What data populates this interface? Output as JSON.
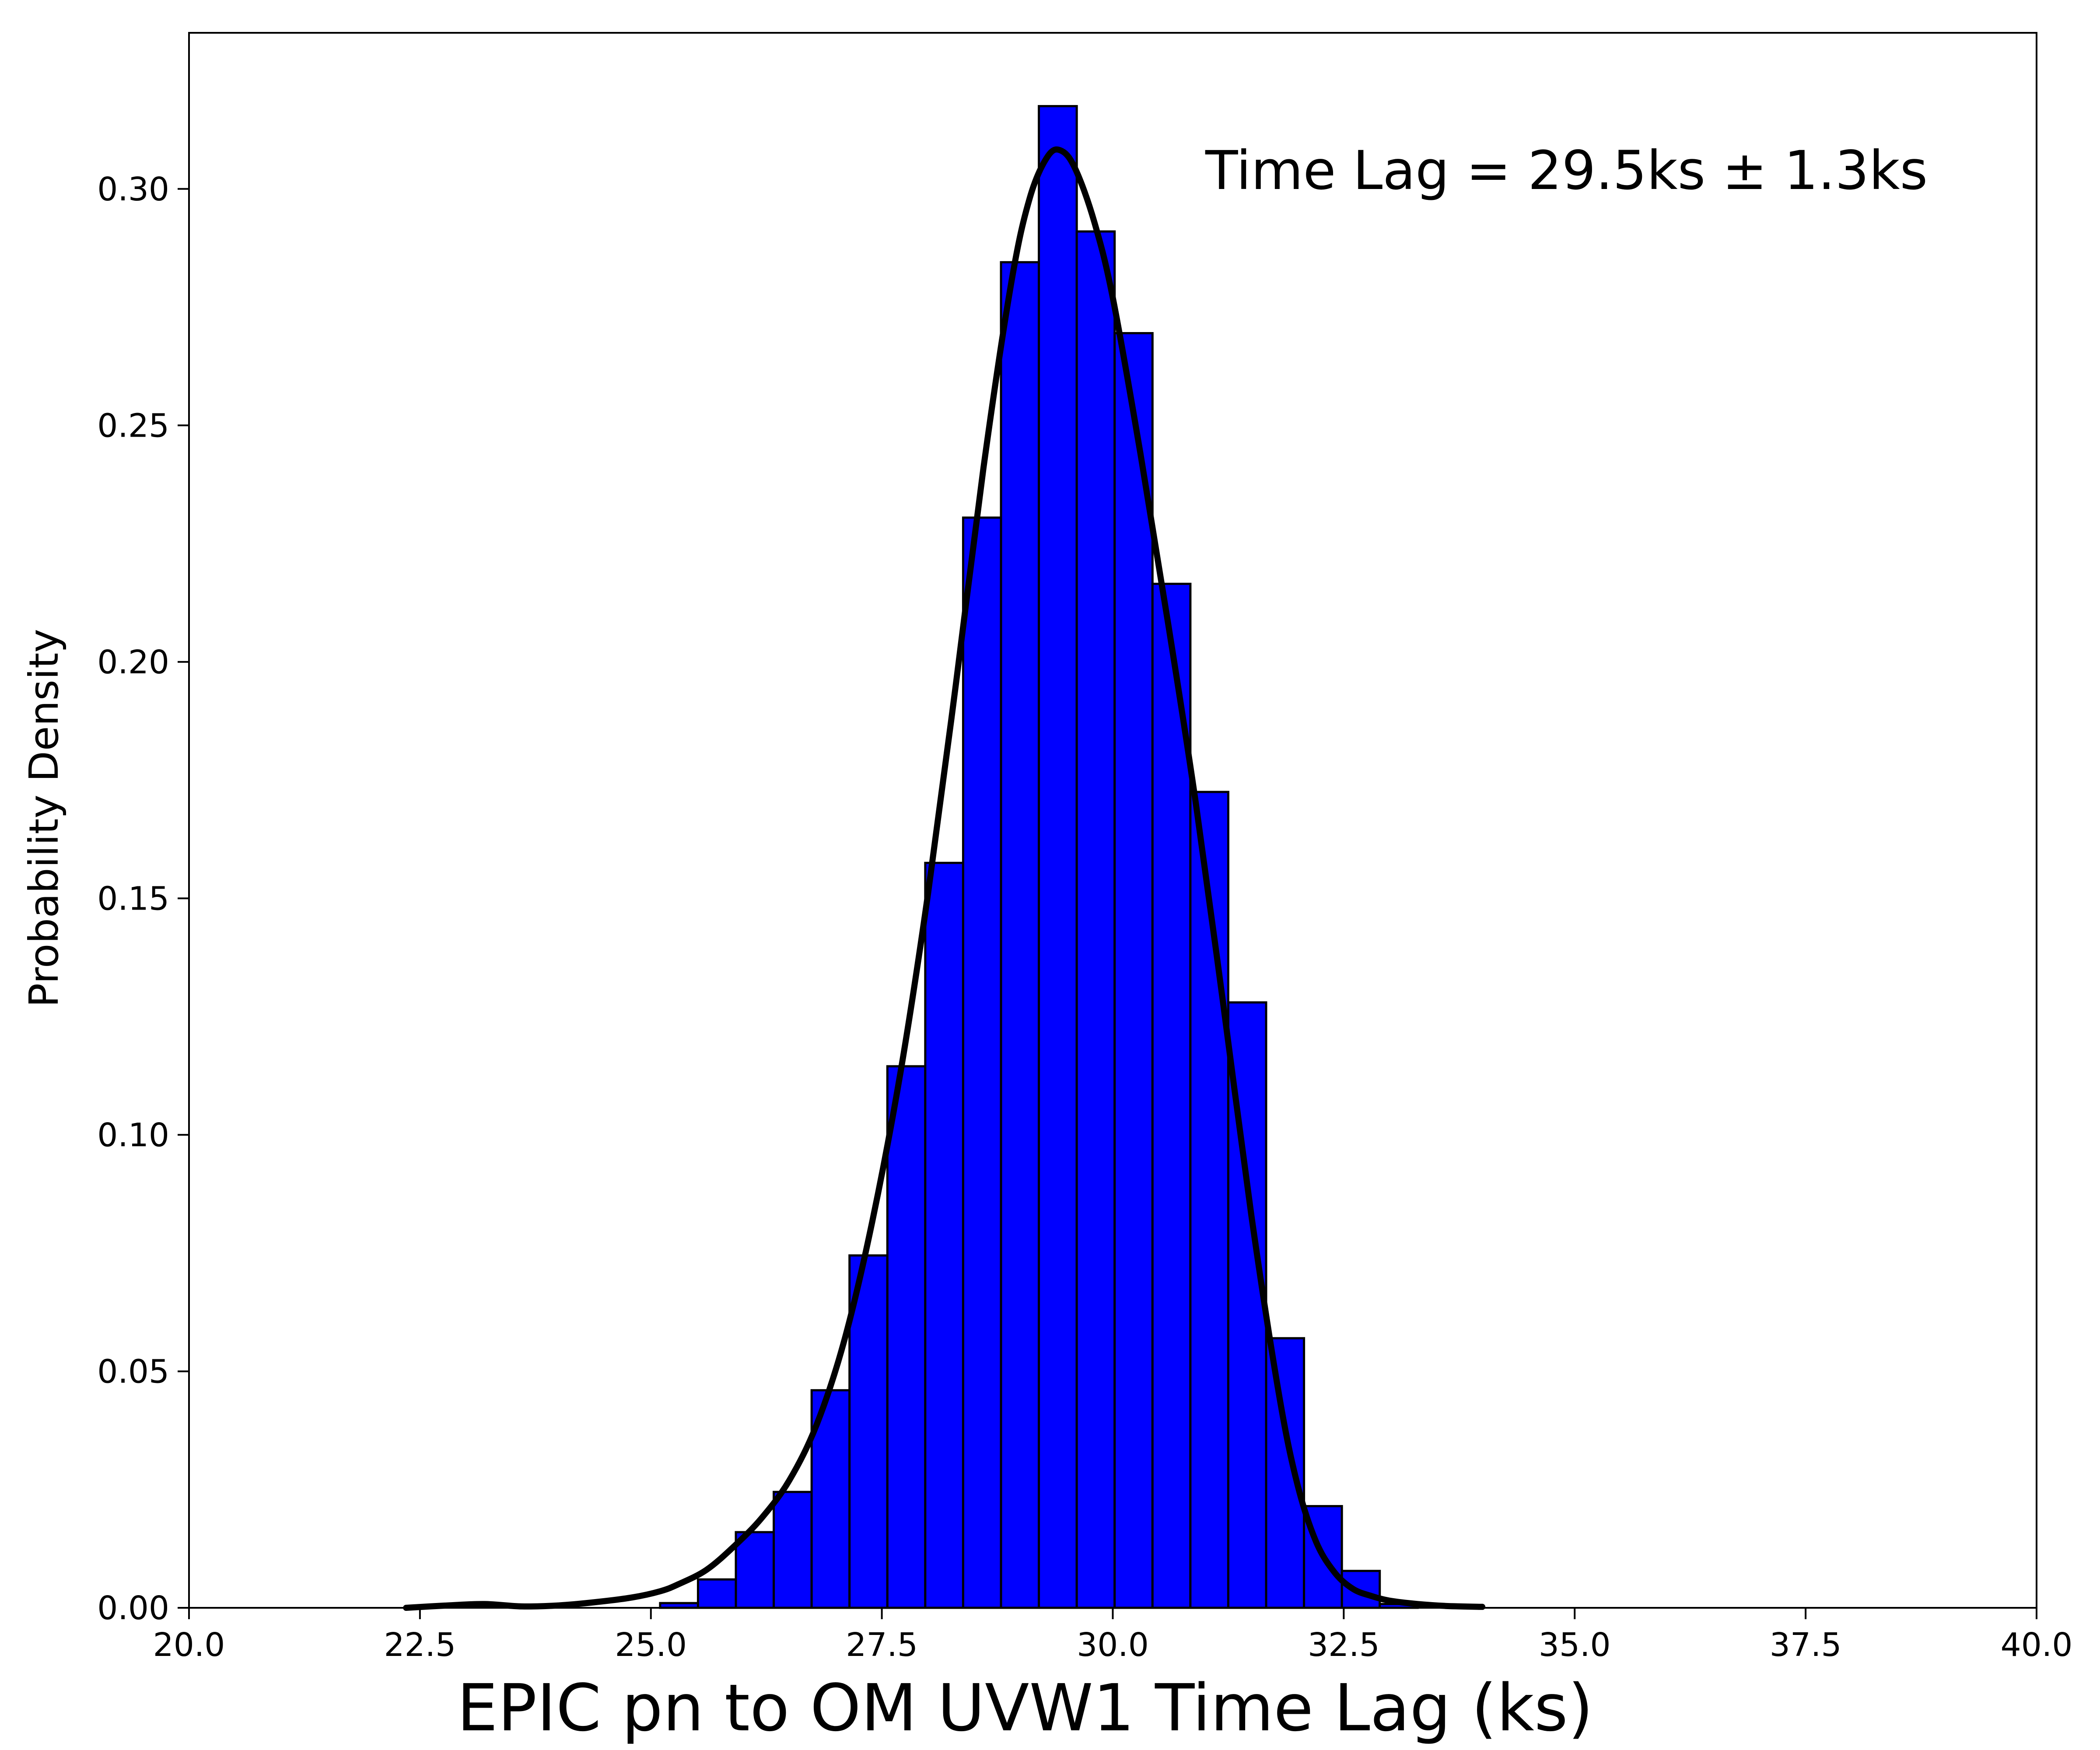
{
  "chart_data": {
    "type": "bar",
    "subtype": "histogram-with-density-curve",
    "xlabel": "EPIC pn to OM UVW1 Time Lag (ks)",
    "ylabel": "Probability Density",
    "annotation": "Time Lag = 29.5ks ± 1.3ks",
    "xlim": [
      20.0,
      40.0
    ],
    "ylim": [
      0.0,
      0.333
    ],
    "xticks": [
      "20.0",
      "22.5",
      "25.0",
      "27.5",
      "30.0",
      "32.5",
      "35.0",
      "37.5",
      "40.0"
    ],
    "yticks": [
      "0.00",
      "0.05",
      "0.10",
      "0.15",
      "0.20",
      "0.25",
      "0.30"
    ],
    "grid": false,
    "legend": "none",
    "bin_width": 0.41,
    "bin_left_edges": [
      25.1,
      25.51,
      25.92,
      26.33,
      26.74,
      27.15,
      27.56,
      27.97,
      28.38,
      28.79,
      29.2,
      29.61,
      30.02,
      30.43,
      30.84,
      31.25,
      31.66,
      32.07,
      32.48,
      32.89
    ],
    "values": [
      0.001,
      0.006,
      0.016,
      0.0245,
      0.046,
      0.0745,
      0.1145,
      0.1575,
      0.2305,
      0.2845,
      0.3175,
      0.291,
      0.2695,
      0.2165,
      0.1725,
      0.128,
      0.057,
      0.0215,
      0.0078,
      0.0008
    ],
    "bar_color": "#0000ff",
    "bar_edge_color": "#000000",
    "density_curve": {
      "color": "#000000",
      "x": [
        22.35,
        22.8,
        23.2,
        23.6,
        24.0,
        24.4,
        24.8,
        25.1,
        25.3,
        25.6,
        25.9,
        26.2,
        26.5,
        26.8,
        27.1,
        27.4,
        27.7,
        28.0,
        28.3,
        28.6,
        28.9,
        29.1,
        29.3,
        29.45,
        29.6,
        29.8,
        30.0,
        30.3,
        30.6,
        30.9,
        31.2,
        31.5,
        31.8,
        32.0,
        32.2,
        32.4,
        32.6,
        32.8,
        33.0,
        33.3,
        33.6,
        34.0
      ],
      "y": [
        0.0,
        0.0005,
        0.0008,
        0.0003,
        0.0005,
        0.0012,
        0.0022,
        0.0035,
        0.005,
        0.008,
        0.013,
        0.019,
        0.027,
        0.039,
        0.057,
        0.082,
        0.113,
        0.151,
        0.195,
        0.241,
        0.28,
        0.298,
        0.307,
        0.308,
        0.304,
        0.293,
        0.277,
        0.244,
        0.208,
        0.17,
        0.127,
        0.083,
        0.045,
        0.026,
        0.014,
        0.0075,
        0.004,
        0.0025,
        0.0015,
        0.0008,
        0.0004,
        0.0002
      ]
    }
  }
}
